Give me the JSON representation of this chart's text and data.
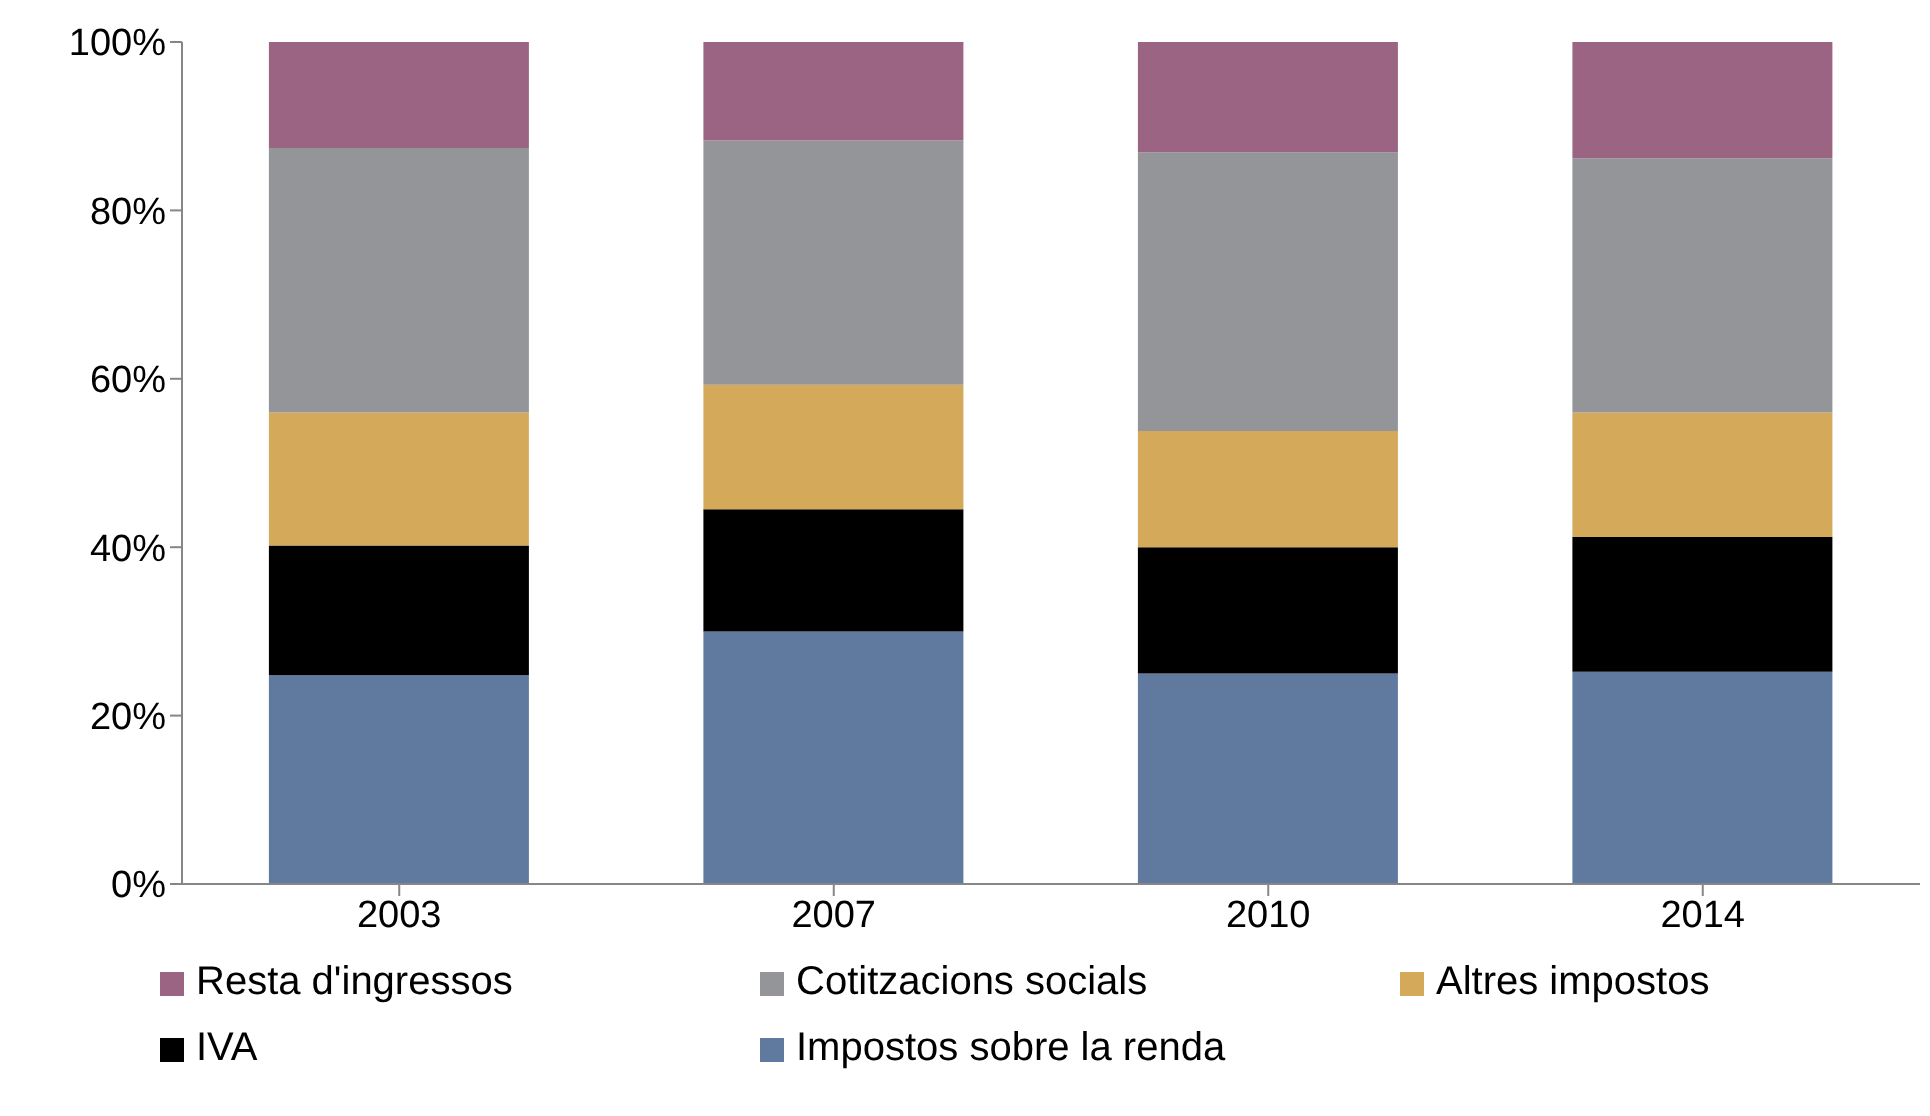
{
  "chart_data": {
    "type": "bar",
    "stacked": true,
    "categories": [
      "2003",
      "2007",
      "2010",
      "2014"
    ],
    "series": [
      {
        "name": "Impostos sobre la renda",
        "color": "#60799f",
        "values": [
          24.8,
          30.0,
          25.0,
          25.2
        ]
      },
      {
        "name": "IVA",
        "color": "#000000",
        "values": [
          15.4,
          14.5,
          15.0,
          16.0
        ]
      },
      {
        "name": "Altres impostos",
        "color": "#d4a95a",
        "values": [
          15.8,
          14.8,
          13.8,
          14.8
        ]
      },
      {
        "name": "Cotitzacions socials",
        "color": "#939598",
        "values": [
          31.4,
          29.0,
          33.1,
          30.2
        ]
      },
      {
        "name": "Resta d'ingressos",
        "color": "#9b6482",
        "values": [
          12.6,
          11.7,
          13.1,
          13.8
        ]
      }
    ],
    "ylim": [
      0,
      100
    ],
    "yticks": [
      {
        "value": 0,
        "label": "0%"
      },
      {
        "value": 20,
        "label": "20%"
      },
      {
        "value": 40,
        "label": "40%"
      },
      {
        "value": 60,
        "label": "60%"
      },
      {
        "value": 80,
        "label": "80%"
      },
      {
        "value": 100,
        "label": "100%"
      }
    ],
    "grid": false,
    "legend": "bottom"
  }
}
